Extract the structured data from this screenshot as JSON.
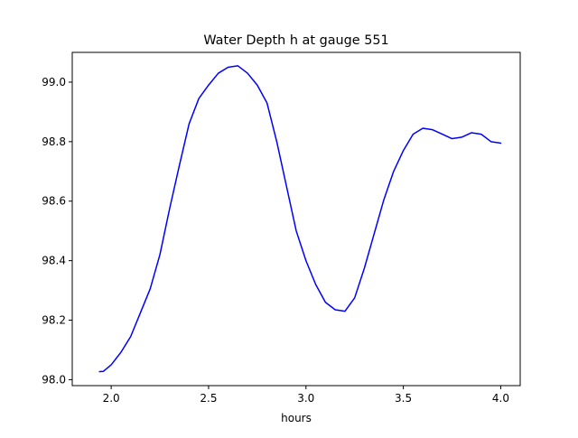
{
  "chart_data": {
    "type": "line",
    "title": "Water Depth h at gauge 551",
    "xlabel": "hours",
    "ylabel": "",
    "xlim": [
      1.8,
      4.1
    ],
    "ylim": [
      97.98,
      99.1
    ],
    "xticks": [
      2.0,
      2.5,
      3.0,
      3.5,
      4.0
    ],
    "xtick_labels": [
      "2.0",
      "2.5",
      "3.0",
      "3.5",
      "4.0"
    ],
    "yticks": [
      98.0,
      98.2,
      98.4,
      98.6,
      98.8,
      99.0
    ],
    "ytick_labels": [
      "98.0",
      "98.2",
      "98.4",
      "98.6",
      "98.8",
      "99.0"
    ],
    "grid": false,
    "colors": {
      "line": "#0000ff",
      "axes": "#000000",
      "background": "#ffffff"
    },
    "series": [
      {
        "x": [
          1.94,
          1.96,
          2.0,
          2.05,
          2.1,
          2.15,
          2.2,
          2.25,
          2.3,
          2.35,
          2.4,
          2.45,
          2.5,
          2.55,
          2.6,
          2.65,
          2.7,
          2.75,
          2.8,
          2.85,
          2.9,
          2.95,
          3.0,
          3.05,
          3.1,
          3.15,
          3.2,
          3.25,
          3.3,
          3.35,
          3.4,
          3.45,
          3.5,
          3.55,
          3.6,
          3.65,
          3.7,
          3.75,
          3.8,
          3.85,
          3.9,
          3.95,
          4.0
        ],
        "values": [
          98.027,
          98.028,
          98.05,
          98.092,
          98.145,
          98.225,
          98.305,
          98.42,
          98.575,
          98.72,
          98.86,
          98.945,
          98.99,
          99.03,
          99.05,
          99.055,
          99.03,
          98.99,
          98.93,
          98.8,
          98.65,
          98.5,
          98.4,
          98.32,
          98.26,
          98.235,
          98.23,
          98.275,
          98.375,
          98.49,
          98.605,
          98.7,
          98.77,
          98.825,
          98.845,
          98.84,
          98.825,
          98.81,
          98.815,
          98.83,
          98.825,
          98.8,
          98.795
        ]
      }
    ]
  }
}
